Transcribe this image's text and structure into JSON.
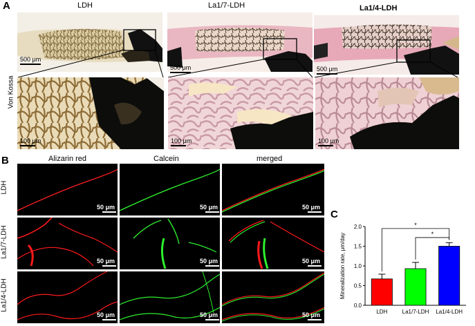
{
  "panel_a": {
    "letter": "A",
    "side_label": "Von Kossa",
    "columns": [
      "LDH",
      "La1/7-LDH",
      "La1/4-LDH"
    ],
    "scale_top": "500 μm",
    "scale_bottom": "100 μm"
  },
  "panel_b": {
    "letter": "B",
    "columns": [
      "Alizarin red",
      "Calcein",
      "merged"
    ],
    "rows": [
      "LDH",
      "La1/7-LDH",
      "La1/4-LDH"
    ],
    "scale": "50 μm"
  },
  "panel_c": {
    "letter": "C",
    "significance": [
      "*",
      "*"
    ]
  },
  "chart_data": {
    "type": "bar",
    "categories": [
      "LDH",
      "La1/7-LDH",
      "La1/4-LDH"
    ],
    "values": [
      0.67,
      0.93,
      1.5
    ],
    "errors": [
      0.12,
      0.16,
      0.09
    ],
    "colors": [
      "#ff0000",
      "#00ff00",
      "#0000ff"
    ],
    "ylabel": "Mineralization rate, μm/day",
    "ylim": [
      0,
      2.0
    ],
    "yticks": [
      "0.0",
      "0.5",
      "1.0",
      "1.5",
      "2.0"
    ],
    "comparisons": [
      [
        "LDH",
        "La1/4-LDH"
      ],
      [
        "La1/7-LDH",
        "La1/4-LDH"
      ]
    ]
  }
}
